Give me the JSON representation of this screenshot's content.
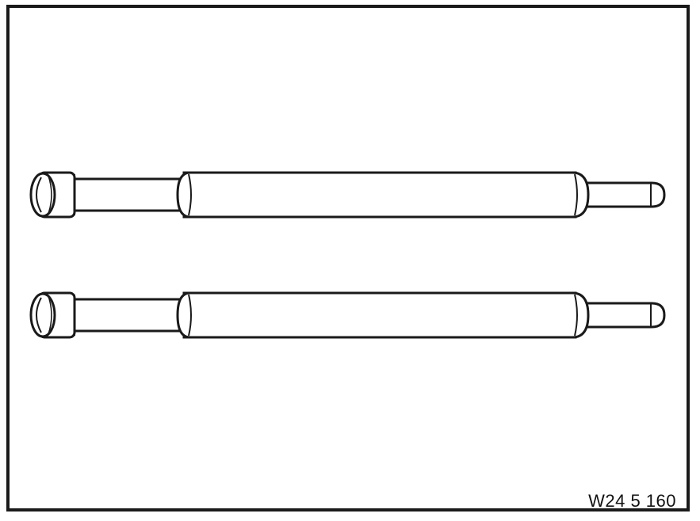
{
  "figure": {
    "id_label": "W24 5 160"
  },
  "drawing": {
    "component_icon": "extension-rod-icon",
    "line_color": "#1a1a1a",
    "fill_color": "#ffffff"
  }
}
